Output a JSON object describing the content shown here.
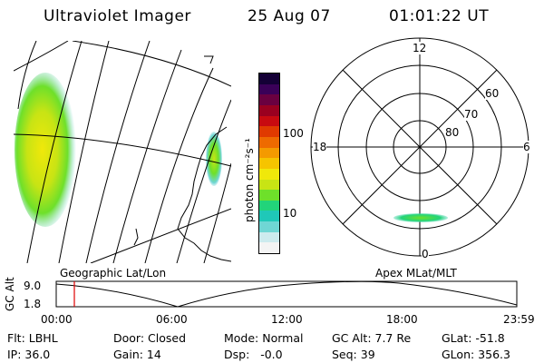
{
  "header": {
    "title": "Ultraviolet Imager",
    "date": "25 Aug 07",
    "time": "01:01:22 UT"
  },
  "colorbar": {
    "label": "photon cm⁻²s⁻¹",
    "tick_100": "100",
    "tick_10": "10",
    "colors": [
      "#f4f4f4",
      "#cdebee",
      "#6fd6d4",
      "#1fc8b8",
      "#22d47a",
      "#6ee02a",
      "#c8e414",
      "#f0e80a",
      "#f6c400",
      "#f49a00",
      "#ee6a00",
      "#e03a00",
      "#c80a10",
      "#9a0020",
      "#6a0040",
      "#3a0058",
      "#140036"
    ]
  },
  "geo_map": {
    "label": "Geographic Lat/Lon"
  },
  "polar_map": {
    "label": "Apex MLat/MLT",
    "mlt_top": "12",
    "mlt_left": "18",
    "mlt_right": "6",
    "mlt_bottom": "0",
    "lat_60": "60",
    "lat_70": "70",
    "lat_80": "80"
  },
  "altitude_plot": {
    "ylabel": "GC Alt",
    "y_max": "9.0",
    "y_min": "1.8",
    "x_ticks": [
      "00:00",
      "06:00",
      "12:00",
      "18:00",
      "23:59"
    ],
    "marker_color": "#dd0000"
  },
  "info": {
    "filter": "Flt: LBHL",
    "door": "Door: Closed",
    "mode": "Mode: Normal",
    "gc_alt": "GC Alt: 7.7 Re",
    "glat": "GLat: -51.8",
    "ip": "IP: 36.0",
    "gain": "Gain: 14",
    "dsp": "Dsp:   -0.0",
    "seq": "Seq: 39",
    "glon": "GLon: 356.3"
  }
}
